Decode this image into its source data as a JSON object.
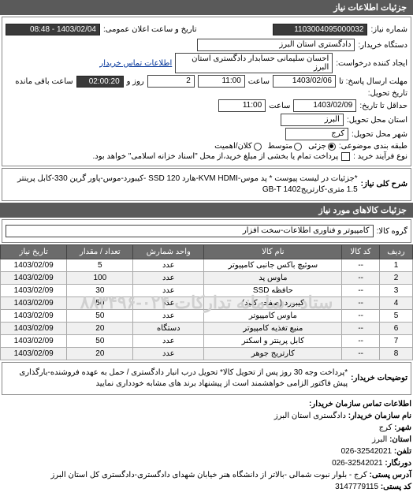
{
  "header": {
    "title": "جزئیات اطلاعات نیاز"
  },
  "top": {
    "req_no_label": "شماره نیاز:",
    "req_no": "1103004095000032",
    "pub_time_label": "تاریخ و ساعت اعلان عمومی:",
    "pub_time": "1403/02/04 - 08:48",
    "buyer_org_label": "دستگاه خریدار:",
    "buyer_org": "دادگستری استان البرز",
    "requester_label": "ایجاد کننده درخواست:",
    "requester": "احسان سلیمانی حسابدار دادگستری استان البرز",
    "contact_link": "اطلاعات تماس خریدار",
    "deadline_send_label": "مهلت ارسال پاسخ: تا",
    "date1": "1403/02/06",
    "time_label": "ساعت",
    "time1": "11:00",
    "remain_label": "روز و",
    "remain_days": "2",
    "remain_time": "02:00:20",
    "remain_suffix": "ساعت باقی مانده",
    "delivery_date_label": "تاریخ تحویل:",
    "deadline_label": "حداقل تا تاریخ:",
    "date2": "1403/02/09",
    "time2": "11:00",
    "province_label": "استان محل تحویل:",
    "province": "البرز",
    "city_label": "شهر محل تحویل:",
    "city": "کرج",
    "budget_label": "طبقه بندی موضوعی:",
    "radio_partial": "جزئی",
    "radio_medium": "متوسط",
    "radio_important": "کلان/اهمیت",
    "payment_label": "نوع فرآیند خرید :",
    "payment_note": "پرداخت تمام یا بخشی از مبلغ خرید،از محل \"اسناد خزانه اسلامی\" خواهد بود."
  },
  "desc": {
    "label": "شرح کلی نیاز:",
    "text": "*جزئیات در لیست پیوست * پد موس-KVM HDMI-هارد SSD 120 -کیبورد-موس-پاور گرین 330-کابل پرینتر 1.5 متری-کارتریج1402 GB-T"
  },
  "goods": {
    "header": "جزئیات کالاهای مورد نیاز",
    "group_label": "گروه کالا:",
    "group_value": "کامپیوتر و فناوری اطلاعات-سخت افزار"
  },
  "table": {
    "columns": [
      "ردیف",
      "کد کالا",
      "نام کالا",
      "واحد شمارش",
      "تعداد / مقدار",
      "تاریخ نیاز"
    ],
    "rows": [
      [
        "1",
        "--",
        "سوئیچ باکس جانبی کامپیوتر",
        "عدد",
        "5",
        "1403/02/09"
      ],
      [
        "2",
        "--",
        "ماوس پد",
        "عدد",
        "100",
        "1403/02/09"
      ],
      [
        "3",
        "--",
        "حافظه SSD",
        "عدد",
        "30",
        "1403/02/09"
      ],
      [
        "4",
        "--",
        "کیبورد (صفحه کلید)",
        "عدد",
        "50",
        "1403/02/09"
      ],
      [
        "5",
        "--",
        "ماوس کامپیوتر",
        "عدد",
        "50",
        "1403/02/09"
      ],
      [
        "6",
        "--",
        "منبع تغذیه کامپیوتر",
        "دستگاه",
        "20",
        "1403/02/09"
      ],
      [
        "7",
        "--",
        "کابل پرینتر و اسکنر",
        "عدد",
        "50",
        "1403/02/09"
      ],
      [
        "8",
        "--",
        "کارتریج جوهر",
        "عدد",
        "20",
        "1403/02/09"
      ]
    ],
    "watermark": "ستاد - سامانه تدارکات\n۰۲۴-۸۸۳۴۹۶"
  },
  "buyer_note": {
    "label": "توضیحات خریدار:",
    "text": "*پرداخت وجه 30 روز پس از تحویل کالا* تحویل درب انبار دادگستری / حمل به عهده فروشنده-بارگذاری پیش فاکتور الزامی خواهشمند است از پیشنهاد برند های مشابه خودداری نمایید"
  },
  "contact": {
    "header": "اطلاعات تماس سازمان خریدار:",
    "org_label": "نام سازمان خریدار:",
    "org": "دادگستری استان البرز",
    "city_label": "شهر:",
    "city": "کرج",
    "province_label": "استان:",
    "province": "البرز",
    "phone_label": "تلفن:",
    "phone": "32542021-026",
    "fax_label": "دورنگار:",
    "fax": "32542021-026",
    "address_label": "آدرس پستی:",
    "address": "کرج - بلوار نبوت شمالی -بالاتر از دانشگاه هنر خیابان شهدای دادگستری-دادگستری کل استان البرز",
    "postal_label": "کد پستی:",
    "postal": "3147779115"
  }
}
